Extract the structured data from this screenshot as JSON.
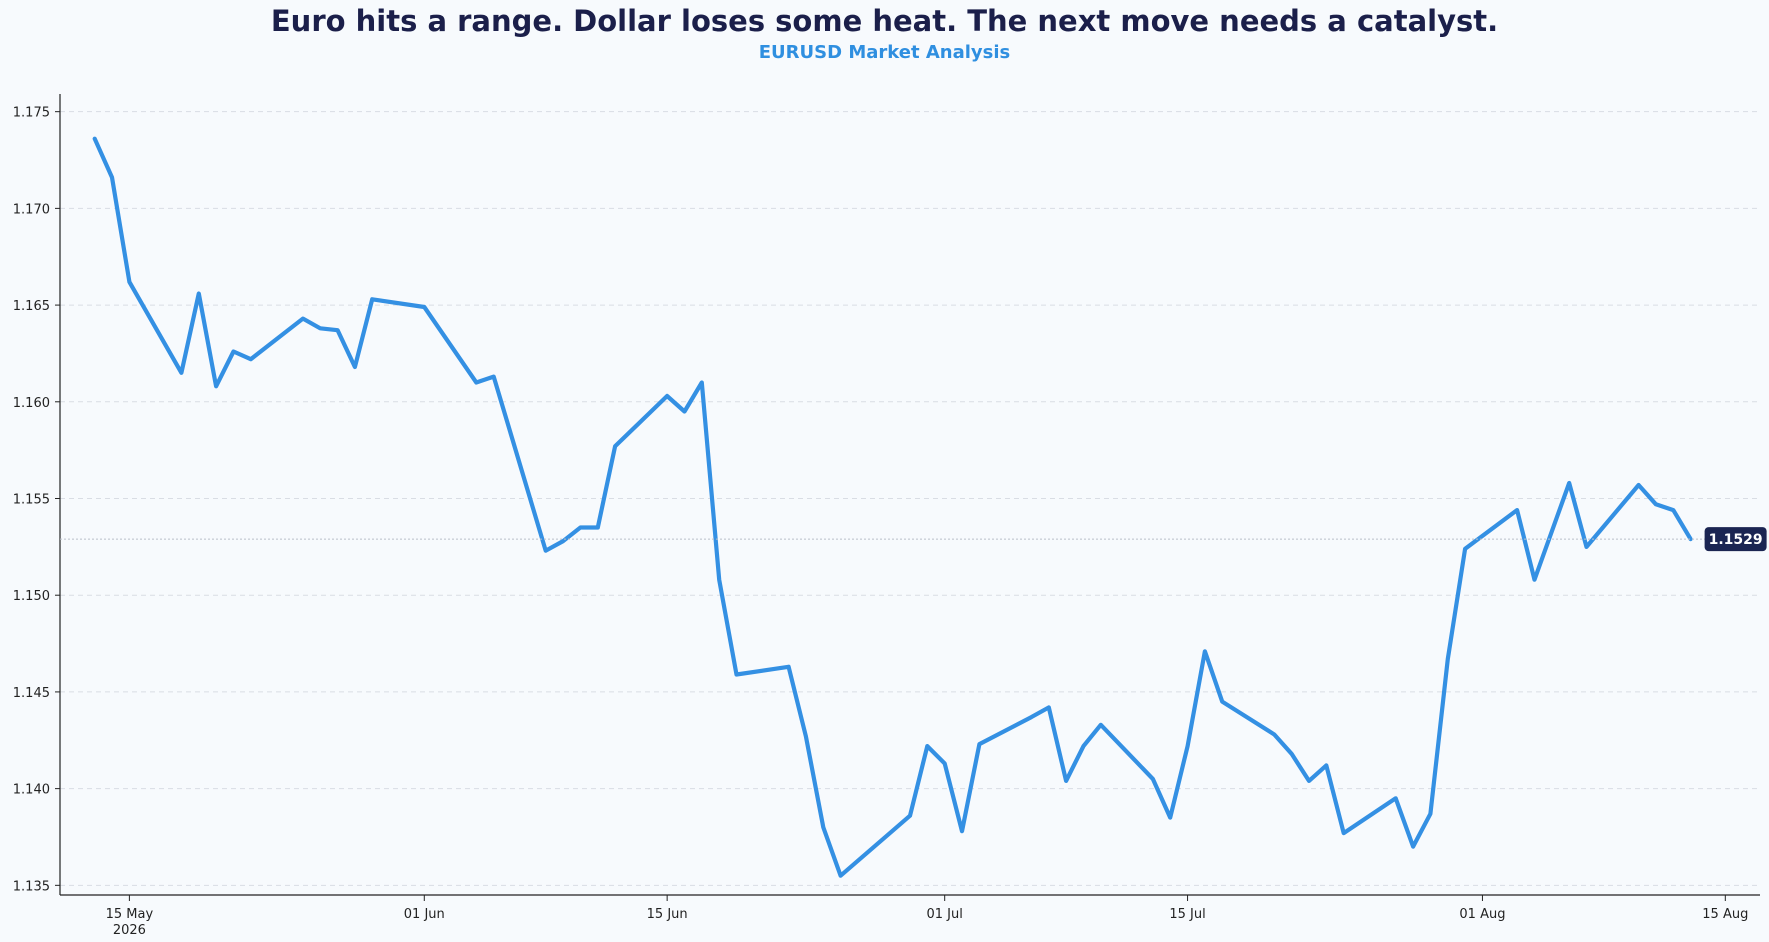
{
  "title": "Euro hits a range. Dollar loses some heat. The next move needs a catalyst.",
  "subtitle": "EURUSD Market Analysis",
  "colors": {
    "background": "#f7fafd",
    "title": "#1b1f4a",
    "subtitle": "#2f8fe0",
    "line": "#3490e3",
    "grid": "#d9dde4",
    "axis": "#222222",
    "last_label_bg": "#1b2552"
  },
  "chart_data": {
    "type": "line",
    "title": "Euro hits a range. Dollar loses some heat. The next move needs a catalyst.",
    "subtitle": "EURUSD Market Analysis",
    "xlabel": "",
    "ylabel": "",
    "ylim": [
      1.1345,
      1.1755
    ],
    "xlim": [
      "2026-05-11",
      "2026-08-17"
    ],
    "grid": "horizontal dashed",
    "x_ticks": [
      {
        "date": "2026-05-15",
        "label": "15 May",
        "sublabel": "2026"
      },
      {
        "date": "2026-06-01",
        "label": "01 Jun",
        "sublabel": ""
      },
      {
        "date": "2026-06-15",
        "label": "15 Jun",
        "sublabel": ""
      },
      {
        "date": "2026-07-01",
        "label": "01 Jul",
        "sublabel": ""
      },
      {
        "date": "2026-07-15",
        "label": "15 Jul",
        "sublabel": ""
      },
      {
        "date": "2026-08-01",
        "label": "01 Aug",
        "sublabel": ""
      },
      {
        "date": "2026-08-15",
        "label": "15 Aug",
        "sublabel": ""
      }
    ],
    "y_ticks": [
      {
        "value": 1.135,
        "label": "1.135"
      },
      {
        "value": 1.14,
        "label": "1.140"
      },
      {
        "value": 1.145,
        "label": "1.145"
      },
      {
        "value": 1.15,
        "label": "1.150"
      },
      {
        "value": 1.155,
        "label": "1.155"
      },
      {
        "value": 1.16,
        "label": "1.160"
      },
      {
        "value": 1.165,
        "label": "1.165"
      },
      {
        "value": 1.17,
        "label": "1.170"
      },
      {
        "value": 1.175,
        "label": "1.175"
      }
    ],
    "series": [
      {
        "points": [
          [
            "2026-05-13",
            1.1736
          ],
          [
            "2026-05-14",
            1.1716
          ],
          [
            "2026-05-15",
            1.1662
          ],
          [
            "2026-05-18",
            1.1615
          ],
          [
            "2026-05-19",
            1.1656
          ],
          [
            "2026-05-20",
            1.1608
          ],
          [
            "2026-05-21",
            1.1626
          ],
          [
            "2026-05-22",
            1.1622
          ],
          [
            "2026-05-25",
            1.1643
          ],
          [
            "2026-05-26",
            1.1638
          ],
          [
            "2026-05-27",
            1.1637
          ],
          [
            "2026-05-28",
            1.1618
          ],
          [
            "2026-05-29",
            1.1653
          ],
          [
            "2026-06-01",
            1.1649
          ],
          [
            "2026-06-04",
            1.161
          ],
          [
            "2026-06-05",
            1.1613
          ],
          [
            "2026-06-08",
            1.1523
          ],
          [
            "2026-06-09",
            1.1528
          ],
          [
            "2026-06-10",
            1.1535
          ],
          [
            "2026-06-11",
            1.1535
          ],
          [
            "2026-06-12",
            1.1577
          ],
          [
            "2026-06-15",
            1.1603
          ],
          [
            "2026-06-16",
            1.1595
          ],
          [
            "2026-06-17",
            1.161
          ],
          [
            "2026-06-18",
            1.1508
          ],
          [
            "2026-06-19",
            1.1459
          ],
          [
            "2026-06-22",
            1.1463
          ],
          [
            "2026-06-23",
            1.1427
          ],
          [
            "2026-06-24",
            1.138
          ],
          [
            "2026-06-25",
            1.1355
          ],
          [
            "2026-06-29",
            1.1386
          ],
          [
            "2026-06-30",
            1.1422
          ],
          [
            "2026-07-01",
            1.1413
          ],
          [
            "2026-07-02",
            1.1378
          ],
          [
            "2026-07-03",
            1.1423
          ],
          [
            "2026-07-06",
            1.1437
          ],
          [
            "2026-07-07",
            1.1442
          ],
          [
            "2026-07-08",
            1.1404
          ],
          [
            "2026-07-09",
            1.1422
          ],
          [
            "2026-07-10",
            1.1433
          ],
          [
            "2026-07-13",
            1.1405
          ],
          [
            "2026-07-14",
            1.1385
          ],
          [
            "2026-07-15",
            1.1422
          ],
          [
            "2026-07-16",
            1.1471
          ],
          [
            "2026-07-17",
            1.1445
          ],
          [
            "2026-07-20",
            1.1428
          ],
          [
            "2026-07-21",
            1.1418
          ],
          [
            "2026-07-22",
            1.1404
          ],
          [
            "2026-07-23",
            1.1412
          ],
          [
            "2026-07-24",
            1.1377
          ],
          [
            "2026-07-27",
            1.1395
          ],
          [
            "2026-07-28",
            1.137
          ],
          [
            "2026-07-29",
            1.1387
          ],
          [
            "2026-07-30",
            1.1467
          ],
          [
            "2026-07-31",
            1.1524
          ],
          [
            "2026-08-03",
            1.1544
          ],
          [
            "2026-08-04",
            1.1508
          ],
          [
            "2026-08-05",
            1.1533
          ],
          [
            "2026-08-06",
            1.1558
          ],
          [
            "2026-08-07",
            1.1525
          ],
          [
            "2026-08-10",
            1.1557
          ],
          [
            "2026-08-11",
            1.1547
          ],
          [
            "2026-08-12",
            1.1544
          ],
          [
            "2026-08-13",
            1.1529
          ]
        ]
      }
    ],
    "last_value": 1.1529,
    "last_value_label": "1.1529"
  }
}
